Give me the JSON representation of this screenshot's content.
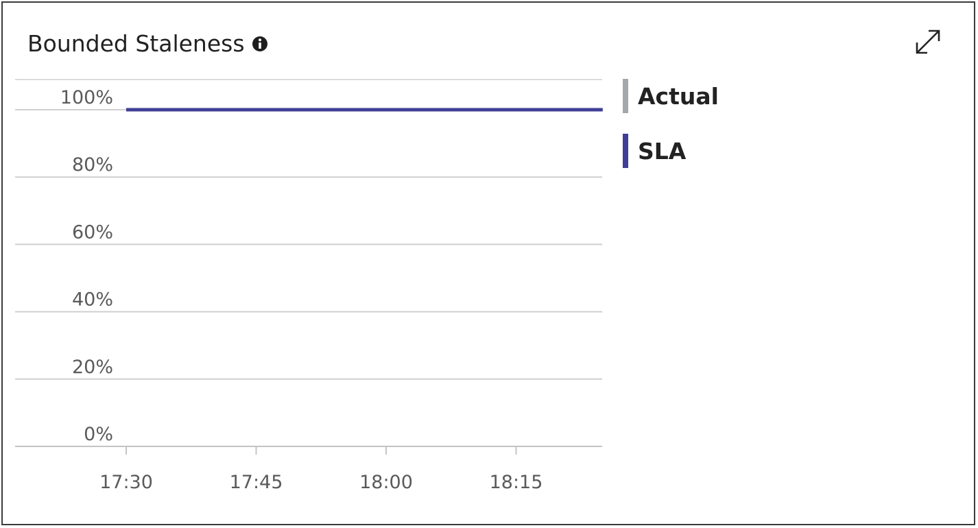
{
  "title": "Bounded Staleness",
  "icons": {
    "info": "info-icon",
    "expand": "expand-icon"
  },
  "colors": {
    "sla": "#3f3f97",
    "actual": "#a3a8ad",
    "grid": "#cfcfcf"
  },
  "chart_data": {
    "type": "line",
    "title": "Bounded Staleness",
    "xlabel": "",
    "ylabel": "",
    "x_ticks": [
      "17:30",
      "17:45",
      "18:00",
      "18:15"
    ],
    "y_ticks": [
      "0%",
      "20%",
      "40%",
      "60%",
      "80%",
      "100%"
    ],
    "ylim": [
      0,
      100
    ],
    "xlim": [
      "17:30",
      "18:25"
    ],
    "grid": true,
    "legend_position": "right",
    "series": [
      {
        "name": "Actual",
        "color": "#a3a8ad",
        "x": [],
        "values": []
      },
      {
        "name": "SLA",
        "color": "#3f3f97",
        "x": [
          "17:30",
          "18:25"
        ],
        "values": [
          100,
          100
        ]
      }
    ]
  }
}
